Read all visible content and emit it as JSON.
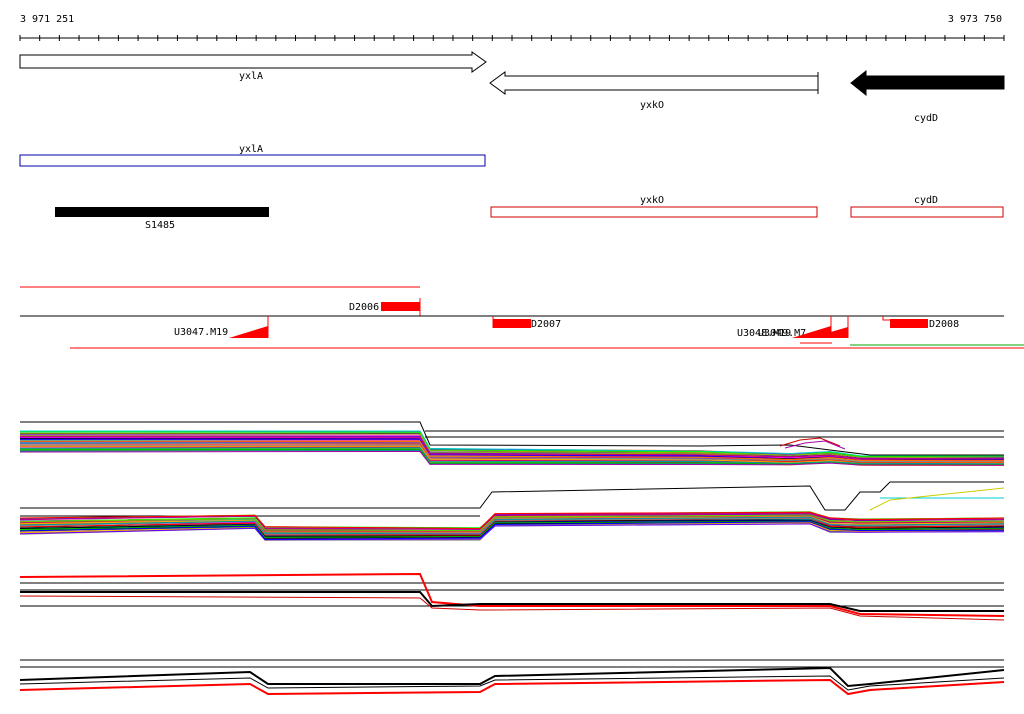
{
  "ruler": {
    "start_label": "3 971 251",
    "end_label": "3 973 750"
  },
  "genes": [
    {
      "name": "yxlA",
      "strand": "+",
      "style": "outline"
    },
    {
      "name": "yxkO",
      "strand": "-",
      "style": "outline"
    },
    {
      "name": "cydD",
      "strand": "-",
      "style": "filled"
    }
  ],
  "boxes": {
    "blue": {
      "label": "yxlA",
      "color": "#0000aa"
    },
    "red_left": {
      "label": "yxkO",
      "color": "#cc0000"
    },
    "red_right": {
      "label": "cydD",
      "color": "#cc0000"
    }
  },
  "feature_bar": {
    "label": "S1485",
    "color": "#000000"
  },
  "tracks": {
    "d_labels": [
      "D2006",
      "D2007",
      "D2008"
    ],
    "u_labels": [
      "U3047.M19",
      "U3048.M19",
      "U3049.M7"
    ],
    "accent_color": "#ff0000"
  },
  "colors": {
    "expression_palette": [
      "#ff0000",
      "#00aa00",
      "#0000ff",
      "#ff00ff",
      "#00cccc",
      "#ffaa00",
      "#888888",
      "#aa00aa",
      "#00ff00",
      "#aaaa00",
      "#ff6600",
      "#6600ff",
      "#009999",
      "#cc0066",
      "#66cc00",
      "#000000"
    ]
  }
}
